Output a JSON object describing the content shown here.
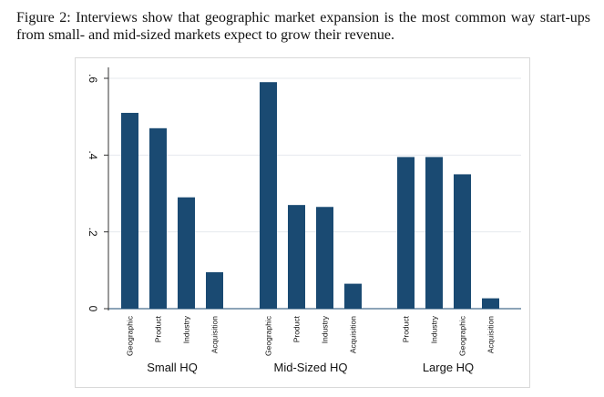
{
  "caption": "Figure 2: Interviews show that geographic market expansion is the most common way start-ups from small- and mid-sized markets expect to grow their revenue.",
  "chart_data": {
    "type": "bar",
    "title": "",
    "xlabel": "",
    "ylabel": "",
    "ylim": [
      0,
      0.6
    ],
    "yticks": [
      {
        "value": 0,
        "label": "0"
      },
      {
        "value": 0.2,
        "label": ".2"
      },
      {
        "value": 0.4,
        "label": ".4"
      },
      {
        "value": 0.6,
        "label": ".6"
      }
    ],
    "grid": true,
    "bar_color": "#1a4a72",
    "groups": [
      {
        "name": "Small HQ",
        "categories": [
          "Geographic",
          "Product",
          "Industry",
          "Acquisition"
        ],
        "values": [
          0.51,
          0.47,
          0.29,
          0.095
        ]
      },
      {
        "name": "Mid-Sized HQ",
        "categories": [
          "Geographic",
          "Product",
          "Industry",
          "Acquisition"
        ],
        "values": [
          0.59,
          0.27,
          0.265,
          0.065
        ]
      },
      {
        "name": "Large HQ",
        "categories": [
          "Product",
          "Industry",
          "Geographic",
          "Acquisition"
        ],
        "values": [
          0.395,
          0.395,
          0.35,
          0.027
        ]
      }
    ]
  }
}
